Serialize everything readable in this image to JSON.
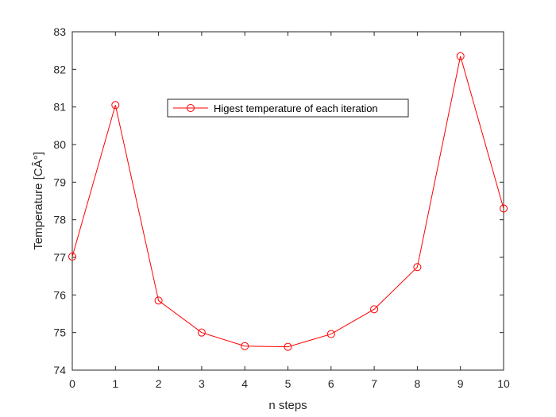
{
  "chart_data": {
    "type": "line",
    "title": "",
    "xlabel": "n steps",
    "ylabel": "Temperature [CÂ°]",
    "xlim": [
      0,
      10
    ],
    "ylim": [
      74,
      83
    ],
    "xticks": [
      0,
      1,
      2,
      3,
      4,
      5,
      6,
      7,
      8,
      9,
      10
    ],
    "yticks": [
      74,
      75,
      76,
      77,
      78,
      79,
      80,
      81,
      82,
      83
    ],
    "grid": false,
    "legend_position": "top-center",
    "series": [
      {
        "name": "Higest temperature of each iteration",
        "color": "#ff0000",
        "marker": "circle",
        "x": [
          0,
          1,
          2,
          3,
          4,
          5,
          6,
          7,
          8,
          9,
          10
        ],
        "y": [
          77.02,
          81.05,
          75.85,
          75.0,
          74.64,
          74.62,
          74.96,
          75.62,
          76.74,
          82.35,
          78.3
        ]
      }
    ]
  }
}
